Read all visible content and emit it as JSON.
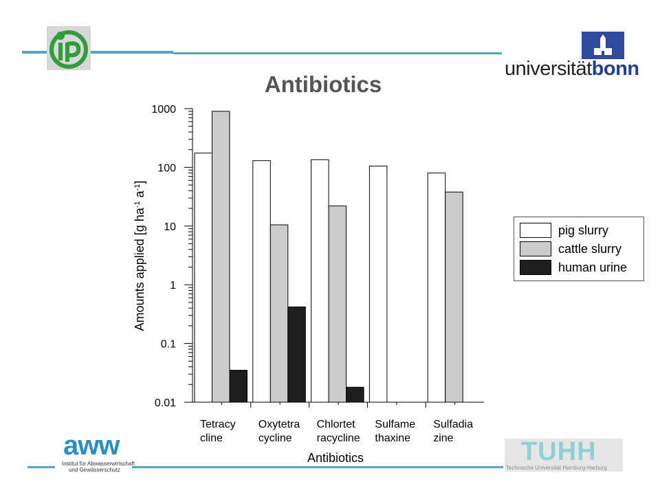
{
  "slide": {
    "title": "Antibiotics"
  },
  "logos": {
    "top_left": {
      "icon": "ip-logo"
    },
    "top_right": {
      "text_plain": "universität",
      "text_bold": "bonn"
    },
    "bottom_left": {
      "word": "aww",
      "sub_line1": "Institut für Abwasserwirtschaft",
      "sub_line2": "und Gewässerschutz"
    },
    "bottom_right": {
      "word": "TUHH",
      "sub": "Technische Universität Hamburg-Harburg"
    }
  },
  "colors": {
    "rule": "#4aa8c0",
    "pig_slurry": "#ffffff",
    "cattle_slurry": "#cccccc",
    "human_urine": "#1e1e1e"
  },
  "chart_data": {
    "type": "bar",
    "title": "",
    "xlabel": "Antibiotics",
    "ylabel_parts": [
      "Amounts applied [g ha",
      "-1",
      " a",
      "-1",
      "]"
    ],
    "yscale": "log",
    "ylim": [
      0.01,
      1000
    ],
    "yticks": [
      0.01,
      0.1,
      1,
      10,
      100,
      1000
    ],
    "ytick_labels": [
      "0.01",
      "0.1",
      "1",
      "10",
      "100",
      "1000"
    ],
    "categories": [
      [
        "Tetracy",
        "cline"
      ],
      [
        "Oxytetra",
        "cycline"
      ],
      [
        "Chlortet",
        "racycline"
      ],
      [
        "Sulfame",
        "thaxine"
      ],
      [
        "Sulfadia",
        "zine"
      ]
    ],
    "series": [
      {
        "name": "pig slurry",
        "values": [
          175,
          130,
          135,
          105,
          80
        ]
      },
      {
        "name": "cattle slurry",
        "values": [
          900,
          10.5,
          22,
          null,
          38
        ]
      },
      {
        "name": "human urine",
        "values": [
          0.035,
          0.42,
          0.018,
          null,
          null
        ]
      }
    ],
    "legend_position": "right",
    "grid": false
  }
}
